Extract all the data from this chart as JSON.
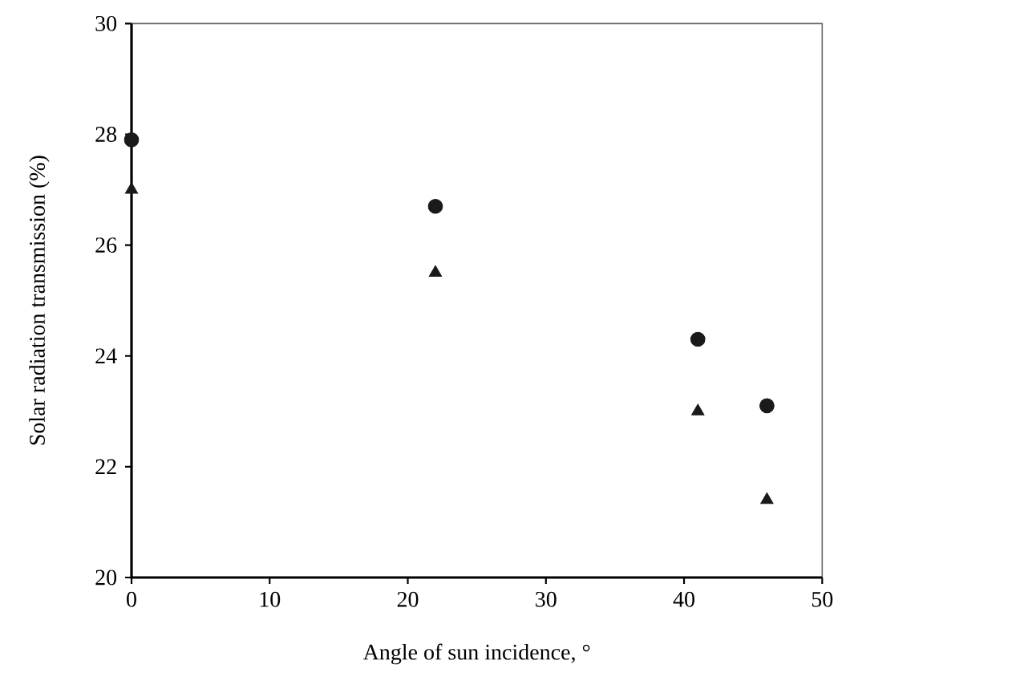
{
  "chart_data": {
    "type": "scatter",
    "xlabel": "Angle of sun incidence, °",
    "ylabel": "Solar radiation transmission (%)",
    "x": [
      0,
      22,
      41,
      46
    ],
    "series": [
      {
        "color": "#1a1a1a",
        "marker": "circle",
        "values": [
          27.9,
          26.7,
          24.3,
          23.1
        ]
      },
      {
        "color": "#1a1a1a",
        "marker": "triangle",
        "values": [
          27.0,
          25.5,
          23.0,
          21.4
        ]
      }
    ],
    "xlim": [
      0,
      50
    ],
    "ylim": [
      20,
      30
    ],
    "xticks": [
      0,
      10,
      20,
      30,
      40,
      50
    ],
    "yticks": [
      20,
      22,
      24,
      26,
      28,
      30
    ],
    "grid": false
  }
}
